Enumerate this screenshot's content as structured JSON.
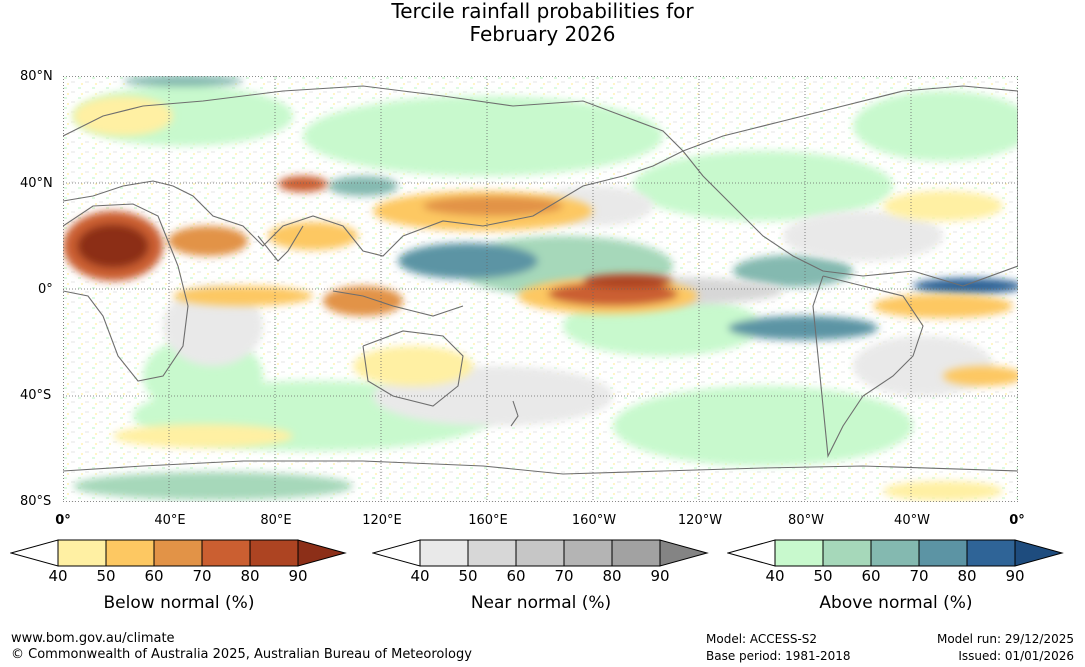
{
  "title": {
    "line1": "Tercile rainfall probabilities for",
    "line2": "February 2026"
  },
  "latitude_labels": [
    "80°N",
    "40°N",
    "0°",
    "40°S",
    "80°S"
  ],
  "longitude_labels": [
    "0°",
    "40°E",
    "80°E",
    "120°E",
    "160°E",
    "160°W",
    "120°W",
    "80°W",
    "40°W",
    "0°"
  ],
  "legends": [
    {
      "title": "Below normal (%)",
      "ticks": [
        "40",
        "50",
        "60",
        "70",
        "80",
        "90"
      ],
      "colors": [
        "#fff0a3",
        "#fdc862",
        "#e29347",
        "#cb5f31",
        "#ad4422",
        "#8c2f18"
      ]
    },
    {
      "title": "Near normal (%)",
      "ticks": [
        "40",
        "50",
        "60",
        "70",
        "80",
        "90"
      ],
      "colors": [
        "#e9e9e9",
        "#d7d7d7",
        "#c6c6c6",
        "#b4b4b4",
        "#a2a2a2",
        "#848484"
      ]
    },
    {
      "title": "Above normal (%)",
      "ticks": [
        "40",
        "50",
        "60",
        "70",
        "80",
        "90"
      ],
      "colors": [
        "#c8f9cd",
        "#a6d8ba",
        "#84b9b0",
        "#5c94a4",
        "#2f6497",
        "#1e4c7e"
      ]
    }
  ],
  "footer": {
    "website": "www.bom.gov.au/climate",
    "copyright": "© Commonwealth of Australia 2025, Australian Bureau of Meteorology",
    "model": "Model: ACCESS-S2",
    "base_period": "Base period: 1981-2018",
    "model_run": "Model run: 29/12/2025",
    "issued": "Issued: 01/01/2026"
  }
}
